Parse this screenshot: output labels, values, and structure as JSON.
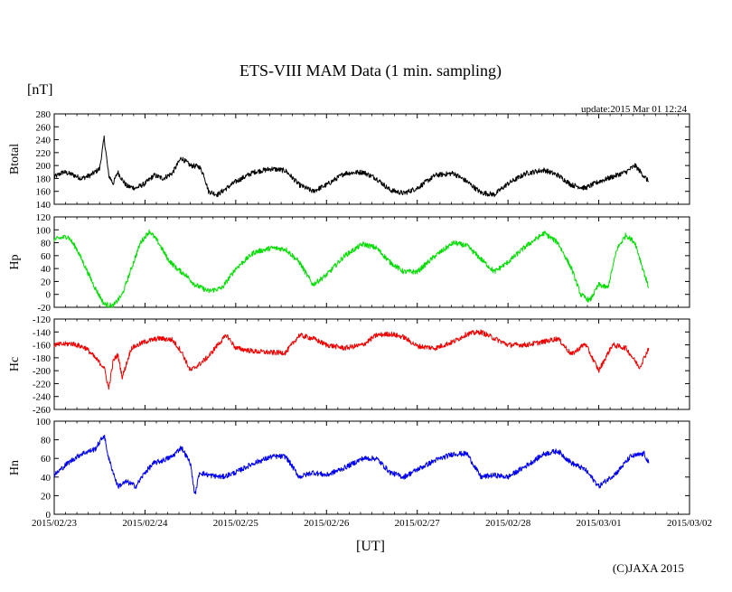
{
  "chart_data": {
    "type": "line",
    "title": "ETS-VIII MAM Data (1 min. sampling)",
    "unit_label": "[nT]",
    "update_text": "update:2015 Mar 01 12:24",
    "xlabel": "[UT]",
    "copyright": "(C)JAXA 2015",
    "x_ticks": [
      "2015/02/23",
      "2015/02/24",
      "2015/02/25",
      "2015/02/26",
      "2015/02/27",
      "2015/02/28",
      "2015/03/01",
      "2015/03/02"
    ],
    "x_range_days": [
      0,
      7
    ],
    "panels": [
      {
        "name": "Btotal",
        "ylabel": "Btotal",
        "color": "#000000",
        "ylim": [
          140,
          280
        ],
        "yticks": [
          140,
          160,
          180,
          200,
          220,
          240,
          260,
          280
        ],
        "x": [
          0,
          0.1,
          0.2,
          0.3,
          0.4,
          0.5,
          0.55,
          0.6,
          0.65,
          0.7,
          0.75,
          0.8,
          0.9,
          1.0,
          1.1,
          1.2,
          1.3,
          1.4,
          1.5,
          1.6,
          1.65,
          1.7,
          1.8,
          1.9,
          2.0,
          2.2,
          2.4,
          2.55,
          2.7,
          2.85,
          3.0,
          3.2,
          3.4,
          3.55,
          3.7,
          3.85,
          4.0,
          4.2,
          4.4,
          4.55,
          4.7,
          4.85,
          5.0,
          5.2,
          5.4,
          5.55,
          5.7,
          5.85,
          6.0,
          6.2,
          6.3,
          6.4,
          6.55
        ],
        "y": [
          182,
          190,
          186,
          180,
          185,
          195,
          243,
          185,
          172,
          190,
          178,
          168,
          165,
          172,
          185,
          180,
          188,
          212,
          200,
          198,
          185,
          160,
          155,
          165,
          175,
          190,
          195,
          192,
          170,
          160,
          170,
          188,
          190,
          180,
          162,
          157,
          165,
          185,
          188,
          175,
          158,
          155,
          172,
          188,
          193,
          185,
          170,
          165,
          175,
          185,
          190,
          200,
          175
        ]
      },
      {
        "name": "Hp",
        "ylabel": "Hp",
        "color": "#00dd00",
        "ylim": [
          -20,
          120
        ],
        "yticks": [
          -20,
          0,
          20,
          40,
          60,
          80,
          100,
          120
        ],
        "x": [
          0,
          0.15,
          0.25,
          0.35,
          0.45,
          0.55,
          0.65,
          0.75,
          0.85,
          0.95,
          1.05,
          1.15,
          1.25,
          1.35,
          1.45,
          1.55,
          1.7,
          1.85,
          2.0,
          2.2,
          2.4,
          2.55,
          2.7,
          2.85,
          3.0,
          3.2,
          3.4,
          3.55,
          3.7,
          3.85,
          4.0,
          4.2,
          4.4,
          4.55,
          4.7,
          4.85,
          5.0,
          5.2,
          5.4,
          5.55,
          5.7,
          5.8,
          5.9,
          6.0,
          6.1,
          6.2,
          6.3,
          6.4,
          6.55
        ],
        "y": [
          85,
          90,
          70,
          40,
          10,
          -15,
          -18,
          0,
          40,
          80,
          98,
          80,
          55,
          40,
          30,
          15,
          5,
          10,
          40,
          65,
          72,
          70,
          50,
          15,
          30,
          60,
          78,
          72,
          50,
          35,
          35,
          60,
          80,
          75,
          55,
          35,
          50,
          75,
          95,
          80,
          40,
          0,
          -10,
          15,
          10,
          70,
          92,
          80,
          10
        ]
      },
      {
        "name": "Hc",
        "ylabel": "Hc",
        "color": "#ee0000",
        "ylim": [
          -260,
          -120
        ],
        "yticks": [
          -260,
          -240,
          -220,
          -200,
          -180,
          -160,
          -140,
          -120
        ],
        "x": [
          0,
          0.2,
          0.35,
          0.45,
          0.55,
          0.6,
          0.65,
          0.7,
          0.75,
          0.85,
          1.0,
          1.15,
          1.3,
          1.4,
          1.5,
          1.6,
          1.7,
          1.8,
          1.9,
          2.0,
          2.2,
          2.4,
          2.55,
          2.7,
          2.85,
          3.0,
          3.2,
          3.4,
          3.55,
          3.7,
          3.85,
          4.0,
          4.2,
          4.4,
          4.55,
          4.7,
          4.85,
          5.0,
          5.2,
          5.4,
          5.55,
          5.7,
          5.85,
          6.0,
          6.15,
          6.3,
          6.45,
          6.55
        ],
        "y": [
          -160,
          -158,
          -165,
          -180,
          -195,
          -228,
          -185,
          -175,
          -210,
          -165,
          -155,
          -150,
          -152,
          -170,
          -200,
          -190,
          -178,
          -160,
          -145,
          -165,
          -170,
          -172,
          -172,
          -145,
          -150,
          -160,
          -165,
          -160,
          -145,
          -143,
          -148,
          -162,
          -165,
          -155,
          -143,
          -140,
          -150,
          -160,
          -160,
          -155,
          -150,
          -175,
          -158,
          -200,
          -160,
          -165,
          -195,
          -165
        ]
      },
      {
        "name": "Hn",
        "ylabel": "Hn",
        "color": "#0000ee",
        "ylim": [
          0,
          100
        ],
        "yticks": [
          0,
          20,
          40,
          60,
          80,
          100
        ],
        "x": [
          0,
          0.15,
          0.3,
          0.45,
          0.55,
          0.6,
          0.65,
          0.7,
          0.8,
          0.9,
          1.0,
          1.1,
          1.2,
          1.3,
          1.4,
          1.5,
          1.55,
          1.6,
          1.7,
          1.85,
          2.0,
          2.2,
          2.4,
          2.55,
          2.7,
          2.85,
          3.0,
          3.2,
          3.4,
          3.55,
          3.7,
          3.85,
          4.0,
          4.2,
          4.4,
          4.55,
          4.7,
          4.85,
          5.0,
          5.2,
          5.4,
          5.55,
          5.7,
          5.85,
          6.0,
          6.2,
          6.35,
          6.5,
          6.55
        ],
        "y": [
          42,
          55,
          65,
          70,
          85,
          60,
          45,
          30,
          35,
          30,
          45,
          55,
          58,
          62,
          72,
          55,
          20,
          45,
          42,
          40,
          45,
          55,
          62,
          62,
          40,
          45,
          42,
          50,
          60,
          60,
          45,
          40,
          48,
          58,
          65,
          65,
          40,
          42,
          40,
          52,
          65,
          68,
          55,
          48,
          30,
          45,
          62,
          65,
          55
        ]
      }
    ]
  }
}
